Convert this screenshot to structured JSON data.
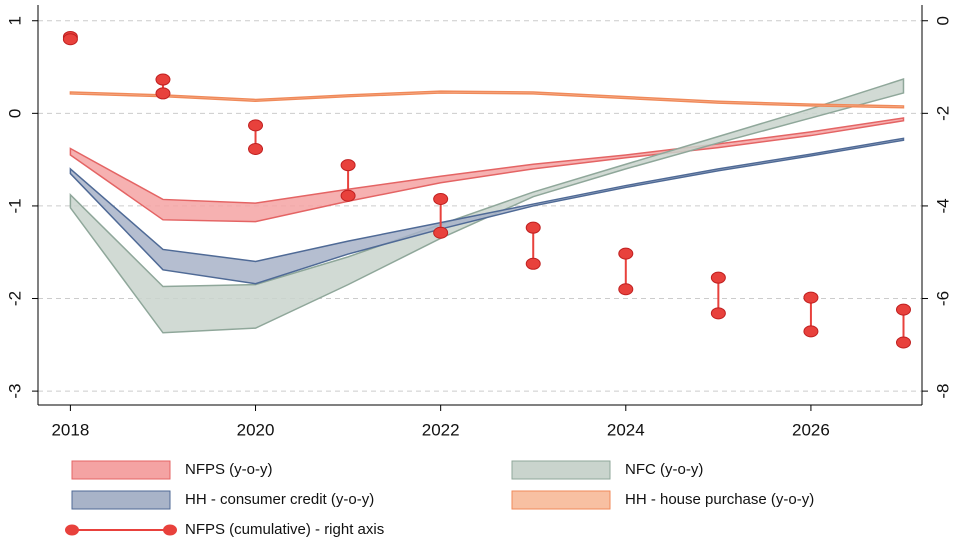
{
  "chart_data": {
    "type": "band",
    "x": [
      2018,
      2019,
      2020,
      2021,
      2022,
      2023,
      2024,
      2025,
      2026,
      2027
    ],
    "xlim": [
      2017.65,
      2027.2
    ],
    "xticks": [
      2018,
      2020,
      2022,
      2024,
      2026
    ],
    "ylim": [
      -3.15,
      1.17
    ],
    "yticks": [
      -3,
      -2,
      -1,
      0,
      1
    ],
    "y2lim": [
      -8.3,
      0.34
    ],
    "y2ticks": [
      -8,
      -6,
      -4,
      -2,
      0
    ],
    "grid": true,
    "series": [
      {
        "name": "NFPS (y-o-y)",
        "type": "band",
        "color": "#e46464",
        "fill": "#f4a3a3",
        "upper": [
          -0.38,
          -0.93,
          -0.97,
          -0.82,
          -0.68,
          -0.55,
          -0.45,
          -0.33,
          -0.2,
          -0.05
        ],
        "lower": [
          -0.45,
          -1.15,
          -1.17,
          -0.95,
          -0.75,
          -0.6,
          -0.48,
          -0.37,
          -0.24,
          -0.08
        ]
      },
      {
        "name": "NFC (y-o-y)",
        "type": "band",
        "color": "#8fa79a",
        "fill": "#c9d4cd",
        "upper": [
          -0.88,
          -1.87,
          -1.85,
          -1.55,
          -1.2,
          -0.85,
          -0.55,
          -0.25,
          0.05,
          0.37
        ],
        "lower": [
          -1.02,
          -2.37,
          -2.32,
          -1.85,
          -1.35,
          -0.9,
          -0.6,
          -0.32,
          -0.05,
          0.22
        ]
      },
      {
        "name": "HH - consumer credit (y-o-y)",
        "type": "band",
        "color": "#4f6a96",
        "fill": "#a8b3c8",
        "upper": [
          -0.6,
          -1.47,
          -1.6,
          -1.38,
          -1.18,
          -0.98,
          -0.78,
          -0.6,
          -0.44,
          -0.27
        ],
        "lower": [
          -0.65,
          -1.69,
          -1.84,
          -1.52,
          -1.25,
          -1.0,
          -0.8,
          -0.62,
          -0.46,
          -0.29
        ]
      },
      {
        "name": "HH - house purchase (y-o-y)",
        "type": "band",
        "color": "#f08a5a",
        "fill": "#f8c0a2",
        "upper": [
          0.23,
          0.2,
          0.15,
          0.2,
          0.24,
          0.23,
          0.18,
          0.13,
          0.1,
          0.08
        ],
        "lower": [
          0.21,
          0.18,
          0.13,
          0.18,
          0.22,
          0.21,
          0.16,
          0.11,
          0.08,
          0.06
        ]
      },
      {
        "name": "NFPS (cumulative) - right axis",
        "type": "dumbbell",
        "axis": "y2",
        "color": "#e8413c",
        "upper": [
          -0.35,
          -1.27,
          -2.26,
          -3.12,
          -3.85,
          -4.47,
          -5.03,
          -5.55,
          -5.98,
          -6.24
        ],
        "lower": [
          -0.4,
          -1.57,
          -2.77,
          -3.78,
          -4.58,
          -5.25,
          -5.8,
          -6.32,
          -6.71,
          -6.95
        ]
      }
    ]
  }
}
